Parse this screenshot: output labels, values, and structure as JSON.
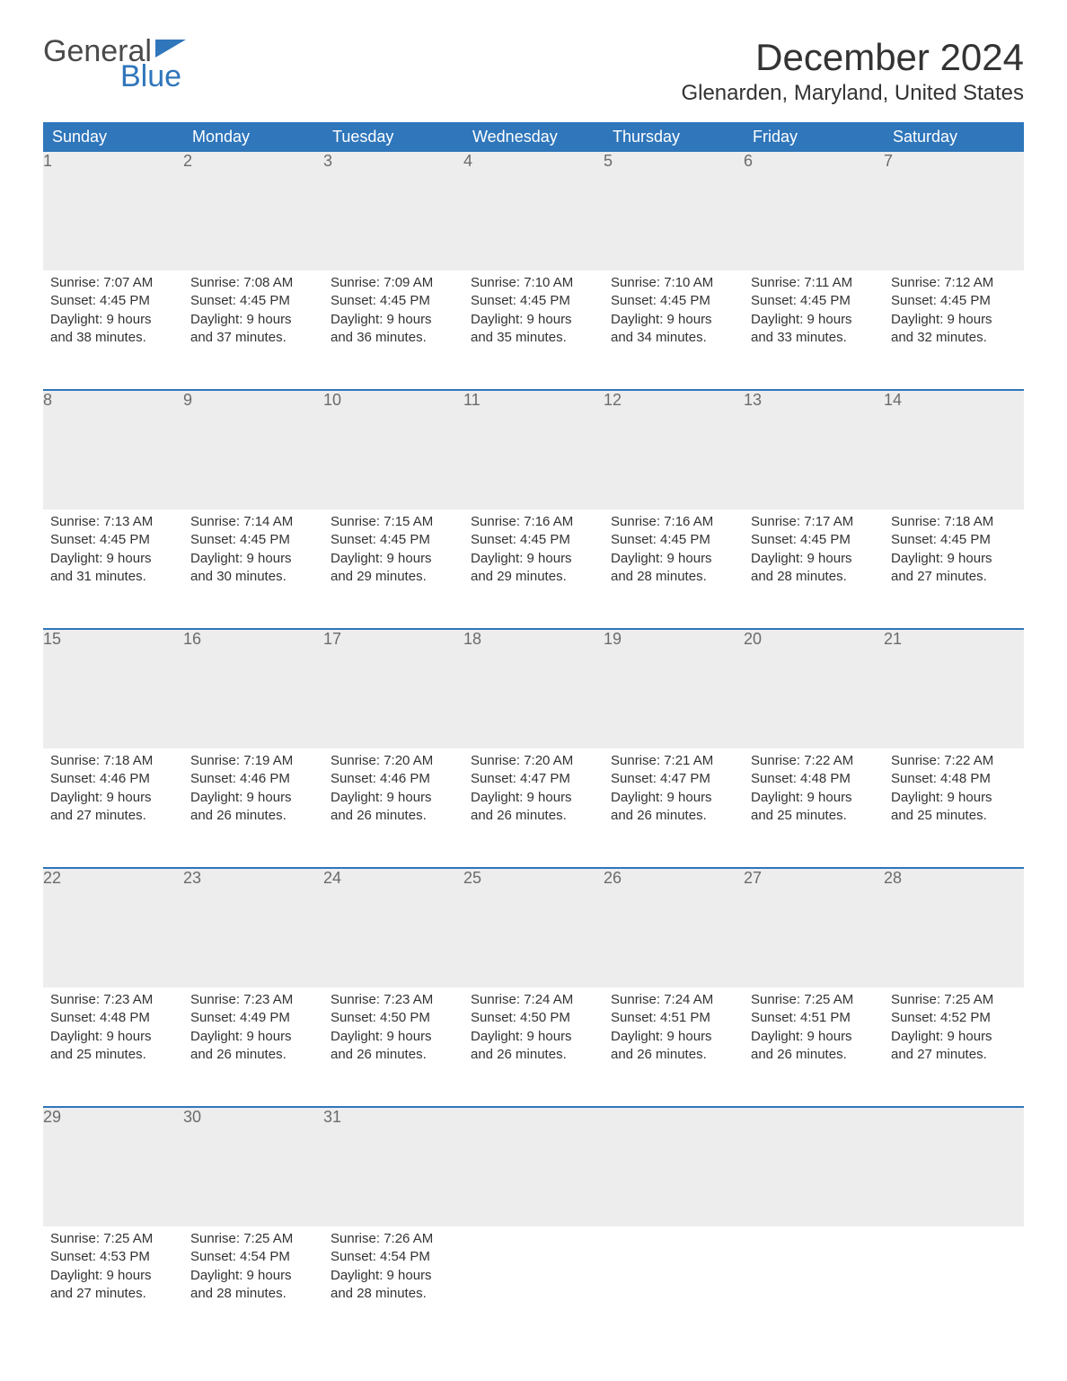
{
  "logo": {
    "word1": "General",
    "word2": "Blue"
  },
  "title": "December 2024",
  "location": "Glenarden, Maryland, United States",
  "colors": {
    "header_bg": "#2f76bb",
    "header_text": "#ffffff",
    "daynum_bg": "#ededed",
    "daynum_text": "#6b6b6b",
    "body_text": "#333333",
    "rule": "#2f76bb",
    "page_bg": "#ffffff",
    "logo_gray": "#4a4a4a",
    "logo_blue": "#2f76bb"
  },
  "day_headers": [
    "Sunday",
    "Monday",
    "Tuesday",
    "Wednesday",
    "Thursday",
    "Friday",
    "Saturday"
  ],
  "weeks": [
    [
      {
        "n": "1",
        "sunrise": "Sunrise: 7:07 AM",
        "sunset": "Sunset: 4:45 PM",
        "d1": "Daylight: 9 hours",
        "d2": "and 38 minutes."
      },
      {
        "n": "2",
        "sunrise": "Sunrise: 7:08 AM",
        "sunset": "Sunset: 4:45 PM",
        "d1": "Daylight: 9 hours",
        "d2": "and 37 minutes."
      },
      {
        "n": "3",
        "sunrise": "Sunrise: 7:09 AM",
        "sunset": "Sunset: 4:45 PM",
        "d1": "Daylight: 9 hours",
        "d2": "and 36 minutes."
      },
      {
        "n": "4",
        "sunrise": "Sunrise: 7:10 AM",
        "sunset": "Sunset: 4:45 PM",
        "d1": "Daylight: 9 hours",
        "d2": "and 35 minutes."
      },
      {
        "n": "5",
        "sunrise": "Sunrise: 7:10 AM",
        "sunset": "Sunset: 4:45 PM",
        "d1": "Daylight: 9 hours",
        "d2": "and 34 minutes."
      },
      {
        "n": "6",
        "sunrise": "Sunrise: 7:11 AM",
        "sunset": "Sunset: 4:45 PM",
        "d1": "Daylight: 9 hours",
        "d2": "and 33 minutes."
      },
      {
        "n": "7",
        "sunrise": "Sunrise: 7:12 AM",
        "sunset": "Sunset: 4:45 PM",
        "d1": "Daylight: 9 hours",
        "d2": "and 32 minutes."
      }
    ],
    [
      {
        "n": "8",
        "sunrise": "Sunrise: 7:13 AM",
        "sunset": "Sunset: 4:45 PM",
        "d1": "Daylight: 9 hours",
        "d2": "and 31 minutes."
      },
      {
        "n": "9",
        "sunrise": "Sunrise: 7:14 AM",
        "sunset": "Sunset: 4:45 PM",
        "d1": "Daylight: 9 hours",
        "d2": "and 30 minutes."
      },
      {
        "n": "10",
        "sunrise": "Sunrise: 7:15 AM",
        "sunset": "Sunset: 4:45 PM",
        "d1": "Daylight: 9 hours",
        "d2": "and 29 minutes."
      },
      {
        "n": "11",
        "sunrise": "Sunrise: 7:16 AM",
        "sunset": "Sunset: 4:45 PM",
        "d1": "Daylight: 9 hours",
        "d2": "and 29 minutes."
      },
      {
        "n": "12",
        "sunrise": "Sunrise: 7:16 AM",
        "sunset": "Sunset: 4:45 PM",
        "d1": "Daylight: 9 hours",
        "d2": "and 28 minutes."
      },
      {
        "n": "13",
        "sunrise": "Sunrise: 7:17 AM",
        "sunset": "Sunset: 4:45 PM",
        "d1": "Daylight: 9 hours",
        "d2": "and 28 minutes."
      },
      {
        "n": "14",
        "sunrise": "Sunrise: 7:18 AM",
        "sunset": "Sunset: 4:45 PM",
        "d1": "Daylight: 9 hours",
        "d2": "and 27 minutes."
      }
    ],
    [
      {
        "n": "15",
        "sunrise": "Sunrise: 7:18 AM",
        "sunset": "Sunset: 4:46 PM",
        "d1": "Daylight: 9 hours",
        "d2": "and 27 minutes."
      },
      {
        "n": "16",
        "sunrise": "Sunrise: 7:19 AM",
        "sunset": "Sunset: 4:46 PM",
        "d1": "Daylight: 9 hours",
        "d2": "and 26 minutes."
      },
      {
        "n": "17",
        "sunrise": "Sunrise: 7:20 AM",
        "sunset": "Sunset: 4:46 PM",
        "d1": "Daylight: 9 hours",
        "d2": "and 26 minutes."
      },
      {
        "n": "18",
        "sunrise": "Sunrise: 7:20 AM",
        "sunset": "Sunset: 4:47 PM",
        "d1": "Daylight: 9 hours",
        "d2": "and 26 minutes."
      },
      {
        "n": "19",
        "sunrise": "Sunrise: 7:21 AM",
        "sunset": "Sunset: 4:47 PM",
        "d1": "Daylight: 9 hours",
        "d2": "and 26 minutes."
      },
      {
        "n": "20",
        "sunrise": "Sunrise: 7:22 AM",
        "sunset": "Sunset: 4:48 PM",
        "d1": "Daylight: 9 hours",
        "d2": "and 25 minutes."
      },
      {
        "n": "21",
        "sunrise": "Sunrise: 7:22 AM",
        "sunset": "Sunset: 4:48 PM",
        "d1": "Daylight: 9 hours",
        "d2": "and 25 minutes."
      }
    ],
    [
      {
        "n": "22",
        "sunrise": "Sunrise: 7:23 AM",
        "sunset": "Sunset: 4:48 PM",
        "d1": "Daylight: 9 hours",
        "d2": "and 25 minutes."
      },
      {
        "n": "23",
        "sunrise": "Sunrise: 7:23 AM",
        "sunset": "Sunset: 4:49 PM",
        "d1": "Daylight: 9 hours",
        "d2": "and 26 minutes."
      },
      {
        "n": "24",
        "sunrise": "Sunrise: 7:23 AM",
        "sunset": "Sunset: 4:50 PM",
        "d1": "Daylight: 9 hours",
        "d2": "and 26 minutes."
      },
      {
        "n": "25",
        "sunrise": "Sunrise: 7:24 AM",
        "sunset": "Sunset: 4:50 PM",
        "d1": "Daylight: 9 hours",
        "d2": "and 26 minutes."
      },
      {
        "n": "26",
        "sunrise": "Sunrise: 7:24 AM",
        "sunset": "Sunset: 4:51 PM",
        "d1": "Daylight: 9 hours",
        "d2": "and 26 minutes."
      },
      {
        "n": "27",
        "sunrise": "Sunrise: 7:25 AM",
        "sunset": "Sunset: 4:51 PM",
        "d1": "Daylight: 9 hours",
        "d2": "and 26 minutes."
      },
      {
        "n": "28",
        "sunrise": "Sunrise: 7:25 AM",
        "sunset": "Sunset: 4:52 PM",
        "d1": "Daylight: 9 hours",
        "d2": "and 27 minutes."
      }
    ],
    [
      {
        "n": "29",
        "sunrise": "Sunrise: 7:25 AM",
        "sunset": "Sunset: 4:53 PM",
        "d1": "Daylight: 9 hours",
        "d2": "and 27 minutes."
      },
      {
        "n": "30",
        "sunrise": "Sunrise: 7:25 AM",
        "sunset": "Sunset: 4:54 PM",
        "d1": "Daylight: 9 hours",
        "d2": "and 28 minutes."
      },
      {
        "n": "31",
        "sunrise": "Sunrise: 7:26 AM",
        "sunset": "Sunset: 4:54 PM",
        "d1": "Daylight: 9 hours",
        "d2": "and 28 minutes."
      },
      null,
      null,
      null,
      null
    ]
  ]
}
